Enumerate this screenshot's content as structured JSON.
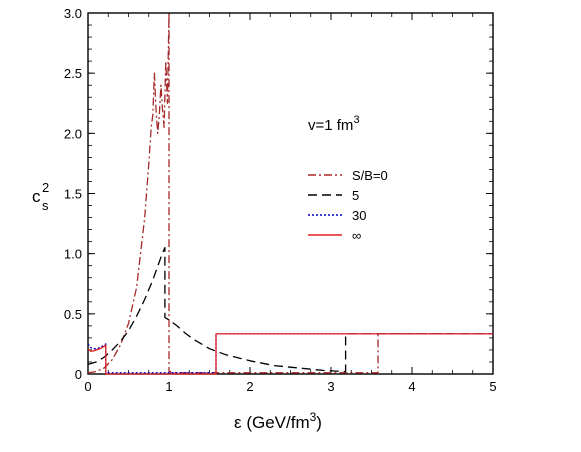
{
  "chart_data": {
    "type": "line",
    "title": "",
    "xlabel": "ε (GeV/fm",
    "xlabel_sup": "3",
    "xlabel_end": ")",
    "ylabel": "c",
    "ylabel_sup": "2",
    "ylabel_sub": "s",
    "xlim": [
      0,
      5
    ],
    "ylim": [
      0,
      3.0
    ],
    "xticks": [
      0,
      1,
      2,
      3,
      4,
      5
    ],
    "xtick_labels": [
      "0",
      "1",
      "2",
      "3",
      "4",
      "5"
    ],
    "yticks": [
      0,
      0.5,
      1.0,
      1.5,
      2.0,
      2.5,
      3.0
    ],
    "ytick_labels": [
      "0",
      "0.5",
      "1.0",
      "1.5",
      "2.0",
      "2.5",
      "3.0"
    ],
    "annotation": {
      "text": "v=1 fm",
      "sup": "3",
      "x": 2.7,
      "y": 2.05
    },
    "legend_placement": "center-right",
    "series": [
      {
        "name": "S/B=0",
        "color": "#a52a2a",
        "dash": "8,3,2,3",
        "x": [
          0,
          0.1,
          0.2,
          0.3,
          0.4,
          0.5,
          0.6,
          0.7,
          0.75,
          0.78,
          0.8,
          0.82,
          0.84,
          0.86,
          0.88,
          0.9,
          0.92,
          0.94,
          0.96,
          0.98,
          1.0,
          1.0,
          1.02,
          1.02,
          1.5,
          2.0,
          2.5,
          3.0,
          3.5,
          3.58,
          3.58,
          4.0,
          4.5,
          5.0
        ],
        "y": [
          0.01,
          0.02,
          0.05,
          0.12,
          0.24,
          0.42,
          0.72,
          1.3,
          1.75,
          2.05,
          2.15,
          2.5,
          2.2,
          2.0,
          2.15,
          2.4,
          2.2,
          2.05,
          2.6,
          2.25,
          3.0,
          0.02,
          0.02,
          0.01,
          0.01,
          0.01,
          0.01,
          0.01,
          0.01,
          0.01,
          0.333,
          0.333,
          0.333,
          0.333
        ]
      },
      {
        "name": "5",
        "color": "#000000",
        "dash": "9,5",
        "x": [
          0,
          0.1,
          0.2,
          0.3,
          0.4,
          0.5,
          0.6,
          0.7,
          0.8,
          0.9,
          0.95,
          0.95,
          1.0,
          1.1,
          1.2,
          1.3,
          1.4,
          1.5,
          1.7,
          2.0,
          2.3,
          2.6,
          2.9,
          3.18,
          3.18,
          3.5,
          4.0,
          4.5,
          5.0
        ],
        "y": [
          0.08,
          0.1,
          0.14,
          0.2,
          0.27,
          0.36,
          0.48,
          0.62,
          0.78,
          0.97,
          1.05,
          0.47,
          0.45,
          0.4,
          0.34,
          0.29,
          0.25,
          0.21,
          0.16,
          0.11,
          0.07,
          0.05,
          0.03,
          0.02,
          0.333,
          0.333,
          0.333,
          0.333,
          0.333
        ]
      },
      {
        "name": "30",
        "color": "#0000cc",
        "dash": "2,2",
        "x": [
          0,
          0.03,
          0.06,
          0.1,
          0.15,
          0.2,
          0.22,
          0.22,
          0.5,
          1.0,
          1.58,
          1.58,
          2.0,
          3.0,
          4.0,
          5.0
        ],
        "y": [
          0.25,
          0.22,
          0.21,
          0.21,
          0.22,
          0.24,
          0.25,
          0.01,
          0.01,
          0.01,
          0.01,
          0.333,
          0.333,
          0.333,
          0.333,
          0.333
        ]
      },
      {
        "name": "∞",
        "color": "#e02020",
        "dash": "",
        "x": [
          0,
          0.03,
          0.06,
          0.1,
          0.15,
          0.2,
          0.22,
          0.22,
          0.5,
          1.0,
          1.58,
          1.58,
          2.0,
          3.0,
          4.0,
          5.0
        ],
        "y": [
          0.21,
          0.19,
          0.19,
          0.2,
          0.21,
          0.23,
          0.24,
          0.0,
          0.0,
          0.0,
          0.0,
          0.333,
          0.333,
          0.333,
          0.333,
          0.333
        ]
      }
    ]
  }
}
